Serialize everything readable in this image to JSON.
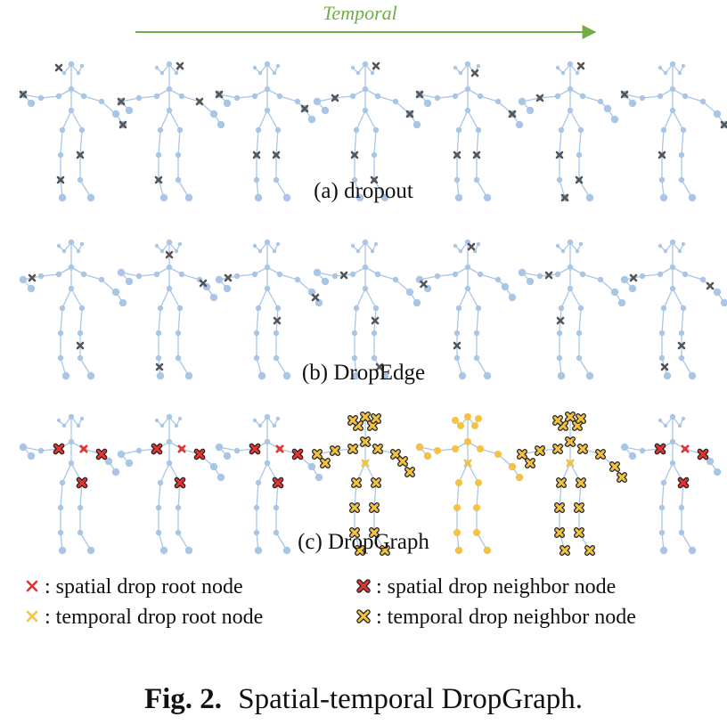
{
  "figure": {
    "arrow_label": "Temporal",
    "rows": [
      {
        "caption": "(a) dropout"
      },
      {
        "caption": "(b) DropEdge"
      },
      {
        "caption": "(c) DropGraph"
      }
    ],
    "legend": [
      {
        "symbol": "spatial-root",
        "label": ": spatial drop root node"
      },
      {
        "symbol": "spatial-neighbor",
        "label": ": spatial drop neighbor node"
      },
      {
        "symbol": "temporal-root",
        "label": ": temporal drop root node"
      },
      {
        "symbol": "temporal-neighbor",
        "label": ": temporal drop neighbor node"
      }
    ],
    "caption_bold": "Fig. 2.",
    "caption_text": "Spatial-temporal DropGraph."
  },
  "colors": {
    "skeleton": "#a9c6e6",
    "arrow": "#70ad47",
    "spatial_drop": "#e3342f",
    "temporal_drop": "#f5c242",
    "gray_mark": "#555555"
  }
}
